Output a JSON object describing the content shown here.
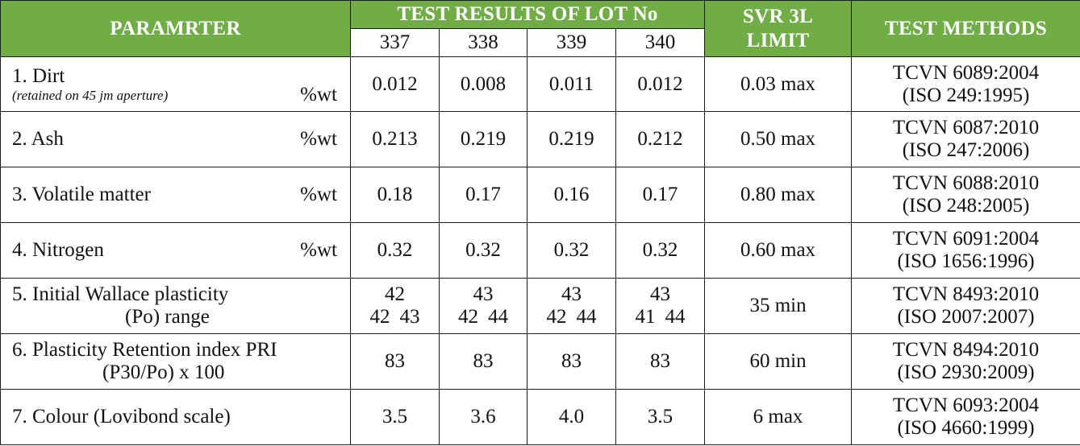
{
  "header": {
    "parameter": "PARAMRTER",
    "test_results": "TEST RESULTS OF LOT No",
    "limit": "SVR 3L LIMIT",
    "methods": "TEST METHODS",
    "lots": [
      "337",
      "338",
      "339",
      "340"
    ]
  },
  "colors": {
    "header_bg": "#70ad47",
    "header_text": "#ffffff"
  },
  "rows": [
    {
      "param": "1. Dirt",
      "note": "(retained on 45 jm aperture)",
      "unit": "%wt",
      "values": [
        "0.012",
        "0.008",
        "0.011",
        "0.012"
      ],
      "limit": "0.03 max",
      "method1": "TCVN 6089:2004",
      "method2": "(ISO 249:1995)"
    },
    {
      "param": "2. Ash",
      "unit": "%wt",
      "values": [
        "0.213",
        "0.219",
        "0.219",
        "0.212"
      ],
      "limit": "0.50 max",
      "method1": "TCVN 6087:2010",
      "method2": "(ISO 247:2006)"
    },
    {
      "param": "3. Volatile matter",
      "unit": "%wt",
      "values": [
        "0.18",
        "0.17",
        "0.16",
        "0.17"
      ],
      "limit": "0.80 max",
      "method1": "TCVN 6088:2010",
      "method2": "(ISO 248:2005)"
    },
    {
      "param": "4. Nitrogen",
      "unit": "%wt",
      "values": [
        "0.32",
        "0.32",
        "0.32",
        "0.32"
      ],
      "limit": "0.60 max",
      "method1": "TCVN 6091:2004",
      "method2": "(ISO 1656:1996)"
    },
    {
      "param": "5. Initial Wallace plasticity",
      "param2": "(Po) range",
      "values": [
        "42",
        "43",
        "43",
        "43"
      ],
      "ranges": [
        [
          "42",
          "43"
        ],
        [
          "42",
          "44"
        ],
        [
          "42",
          "44"
        ],
        [
          "41",
          "44"
        ]
      ],
      "limit": "35 min",
      "method1": "TCVN 8493:2010",
      "method2": "(ISO 2007:2007)"
    },
    {
      "param": "6. Plasticity Retention index PRI",
      "param2": "(P30/Po) x 100",
      "values": [
        "83",
        "83",
        "83",
        "83"
      ],
      "limit": "60 min",
      "method1": "TCVN 8494:2010",
      "method2": "(ISO 2930:2009)"
    },
    {
      "param": "7. Colour (Lovibond scale)",
      "values": [
        "3.5",
        "3.6",
        "4.0",
        "3.5"
      ],
      "limit": "6 max",
      "method1": "TCVN 6093:2004",
      "method2": "(ISO 4660:1999)"
    }
  ]
}
